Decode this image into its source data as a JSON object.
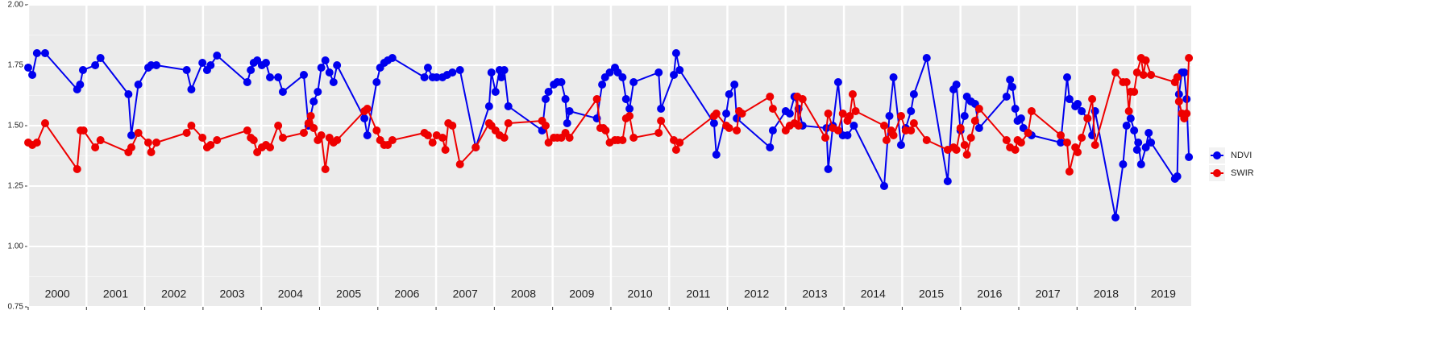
{
  "chart_data": {
    "type": "line",
    "xlim": [
      2000,
      2019.96
    ],
    "ylim": [
      0.75,
      2.0
    ],
    "yticks": [
      {
        "value": 0.75,
        "label": "0.75"
      },
      {
        "value": 1.0,
        "label": "1.00"
      },
      {
        "value": 1.25,
        "label": "1.25"
      },
      {
        "value": 1.5,
        "label": "1.50"
      },
      {
        "value": 1.75,
        "label": "1.75"
      },
      {
        "value": 2.0,
        "label": "2.00"
      }
    ],
    "xticks": [
      {
        "value": 2000,
        "label": "2000"
      },
      {
        "value": 2001,
        "label": "2001"
      },
      {
        "value": 2002,
        "label": "2002"
      },
      {
        "value": 2003,
        "label": "2003"
      },
      {
        "value": 2004,
        "label": "2004"
      },
      {
        "value": 2005,
        "label": "2005"
      },
      {
        "value": 2006,
        "label": "2006"
      },
      {
        "value": 2007,
        "label": "2007"
      },
      {
        "value": 2008,
        "label": "2008"
      },
      {
        "value": 2009,
        "label": "2009"
      },
      {
        "value": 2010,
        "label": "2010"
      },
      {
        "value": 2011,
        "label": "2011"
      },
      {
        "value": 2012,
        "label": "2012"
      },
      {
        "value": 2013,
        "label": "2013"
      },
      {
        "value": 2014,
        "label": "2014"
      },
      {
        "value": 2015,
        "label": "2015"
      },
      {
        "value": 2016,
        "label": "2016"
      },
      {
        "value": 2017,
        "label": "2017"
      },
      {
        "value": 2018,
        "label": "2018"
      },
      {
        "value": 2019,
        "label": "2019"
      }
    ],
    "grid": true,
    "legend": "right",
    "series": [
      {
        "name": "NDVI",
        "color": "#0000ee",
        "x": [
          2000.0,
          2000.07,
          2000.15,
          2000.29,
          2000.84,
          2000.89,
          2000.94,
          2001.15,
          2001.24,
          2001.72,
          2001.77,
          2001.89,
          2002.06,
          2002.11,
          2002.2,
          2002.72,
          2002.8,
          2002.99,
          2003.07,
          2003.13,
          2003.24,
          2003.76,
          2003.82,
          2003.87,
          2003.93,
          2004.01,
          2004.08,
          2004.15,
          2004.29,
          2004.37,
          2004.73,
          2004.81,
          2004.9,
          2004.97,
          2005.03,
          2005.1,
          2005.17,
          2005.24,
          2005.3,
          2005.77,
          2005.82,
          2005.98,
          2006.04,
          2006.11,
          2006.17,
          2006.25,
          2006.8,
          2006.86,
          2006.94,
          2007.01,
          2007.11,
          2007.19,
          2007.28,
          2007.41,
          2007.68,
          2007.91,
          2007.95,
          2008.02,
          2008.09,
          2008.12,
          2008.17,
          2008.24,
          2008.82,
          2008.88,
          2008.93,
          2009.02,
          2009.08,
          2009.15,
          2009.22,
          2009.25,
          2009.29,
          2009.76,
          2009.85,
          2009.9,
          2009.98,
          2010.07,
          2010.12,
          2010.2,
          2010.26,
          2010.32,
          2010.39,
          2010.82,
          2010.86,
          2011.08,
          2011.12,
          2011.18,
          2011.77,
          2011.81,
          2011.98,
          2012.03,
          2012.12,
          2012.16,
          2012.73,
          2012.78,
          2013.0,
          2013.07,
          2013.15,
          2013.22,
          2013.29,
          2013.7,
          2013.73,
          2013.81,
          2013.9,
          2013.98,
          2014.06,
          2014.17,
          2014.69,
          2014.78,
          2014.85,
          2014.98,
          2015.06,
          2015.15,
          2015.2,
          2015.42,
          2015.78,
          2015.88,
          2015.93,
          2016.0,
          2016.07,
          2016.11,
          2016.18,
          2016.25,
          2016.32,
          2016.79,
          2016.85,
          2016.89,
          2016.94,
          2016.98,
          2017.04,
          2017.08,
          2017.16,
          2017.22,
          2017.72,
          2017.83,
          2017.87,
          2017.97,
          2018.01,
          2018.08,
          2018.18,
          2018.26,
          2018.31,
          2018.66,
          2018.79,
          2018.85,
          2018.92,
          2018.98,
          2019.03,
          2019.05,
          2019.1,
          2019.18,
          2019.23,
          2019.27,
          2019.68,
          2019.72,
          2019.75,
          2019.8,
          2019.84,
          2019.88,
          2019.92
        ],
        "values": [
          1.74,
          1.71,
          1.8,
          1.8,
          1.65,
          1.67,
          1.73,
          1.75,
          1.78,
          1.63,
          1.46,
          1.67,
          1.74,
          1.75,
          1.75,
          1.73,
          1.65,
          1.76,
          1.73,
          1.75,
          1.79,
          1.68,
          1.73,
          1.76,
          1.77,
          1.75,
          1.76,
          1.7,
          1.7,
          1.64,
          1.71,
          1.5,
          1.6,
          1.64,
          1.74,
          1.77,
          1.72,
          1.68,
          1.75,
          1.53,
          1.46,
          1.68,
          1.74,
          1.76,
          1.77,
          1.78,
          1.7,
          1.74,
          1.7,
          1.7,
          1.7,
          1.71,
          1.72,
          1.73,
          1.41,
          1.58,
          1.72,
          1.64,
          1.73,
          1.7,
          1.73,
          1.58,
          1.48,
          1.61,
          1.64,
          1.67,
          1.68,
          1.68,
          1.61,
          1.51,
          1.56,
          1.53,
          1.67,
          1.7,
          1.72,
          1.74,
          1.72,
          1.7,
          1.61,
          1.57,
          1.68,
          1.72,
          1.57,
          1.71,
          1.8,
          1.73,
          1.51,
          1.38,
          1.55,
          1.63,
          1.67,
          1.53,
          1.41,
          1.48,
          1.56,
          1.55,
          1.62,
          1.57,
          1.5,
          1.49,
          1.32,
          1.5,
          1.68,
          1.46,
          1.46,
          1.5,
          1.25,
          1.54,
          1.7,
          1.42,
          1.49,
          1.56,
          1.63,
          1.78,
          1.27,
          1.65,
          1.67,
          1.48,
          1.54,
          1.62,
          1.6,
          1.59,
          1.49,
          1.62,
          1.69,
          1.66,
          1.57,
          1.52,
          1.53,
          1.49,
          1.47,
          1.46,
          1.43,
          1.7,
          1.61,
          1.58,
          1.59,
          1.56,
          1.53,
          1.46,
          1.56,
          1.12,
          1.34,
          1.5,
          1.53,
          1.48,
          1.4,
          1.43,
          1.34,
          1.41,
          1.47,
          1.43,
          1.28,
          1.29,
          1.63,
          1.72,
          1.72,
          1.61,
          1.37
        ]
      },
      {
        "name": "SWIR",
        "color": "#ee0000",
        "x": [
          2000.0,
          2000.07,
          2000.15,
          2000.29,
          2000.84,
          2000.9,
          2000.95,
          2001.15,
          2001.24,
          2001.72,
          2001.77,
          2001.89,
          2002.06,
          2002.11,
          2002.2,
          2002.72,
          2002.8,
          2002.99,
          2003.07,
          2003.13,
          2003.24,
          2003.76,
          2003.82,
          2003.87,
          2003.93,
          2004.01,
          2004.08,
          2004.15,
          2004.29,
          2004.37,
          2004.73,
          2004.81,
          2004.85,
          2004.9,
          2004.97,
          2005.03,
          2005.1,
          2005.17,
          2005.24,
          2005.3,
          2005.77,
          2005.82,
          2005.98,
          2006.04,
          2006.11,
          2006.17,
          2006.25,
          2006.8,
          2006.86,
          2006.94,
          2007.01,
          2007.11,
          2007.16,
          2007.21,
          2007.28,
          2007.41,
          2007.68,
          2007.91,
          2007.95,
          2008.02,
          2008.09,
          2008.17,
          2008.24,
          2008.82,
          2008.88,
          2008.93,
          2009.02,
          2009.08,
          2009.15,
          2009.22,
          2009.29,
          2009.76,
          2009.82,
          2009.87,
          2009.91,
          2009.98,
          2010.07,
          2010.12,
          2010.2,
          2010.26,
          2010.32,
          2010.39,
          2010.82,
          2010.86,
          2011.08,
          2011.12,
          2011.18,
          2011.77,
          2011.81,
          2011.98,
          2012.03,
          2012.16,
          2012.2,
          2012.25,
          2012.73,
          2012.78,
          2013.0,
          2013.07,
          2013.15,
          2013.2,
          2013.22,
          2013.29,
          2013.68,
          2013.73,
          2013.81,
          2013.9,
          2013.98,
          2014.06,
          2014.1,
          2014.15,
          2014.2,
          2014.69,
          2014.73,
          2014.81,
          2014.85,
          2014.98,
          2015.06,
          2015.15,
          2015.2,
          2015.42,
          2015.78,
          2015.88,
          2015.93,
          2016.0,
          2016.07,
          2016.11,
          2016.18,
          2016.25,
          2016.32,
          2016.79,
          2016.85,
          2016.94,
          2016.98,
          2017.04,
          2017.16,
          2017.22,
          2017.72,
          2017.83,
          2017.87,
          2017.97,
          2018.01,
          2018.08,
          2018.18,
          2018.26,
          2018.31,
          2018.66,
          2018.79,
          2018.85,
          2018.89,
          2018.92,
          2018.98,
          2019.03,
          2019.1,
          2019.14,
          2019.18,
          2019.27,
          2019.68,
          2019.72,
          2019.75,
          2019.8,
          2019.84,
          2019.88,
          2019.92
        ],
        "values": [
          1.43,
          1.42,
          1.43,
          1.51,
          1.32,
          1.48,
          1.48,
          1.41,
          1.44,
          1.39,
          1.41,
          1.47,
          1.43,
          1.39,
          1.43,
          1.47,
          1.5,
          1.45,
          1.41,
          1.42,
          1.44,
          1.48,
          1.45,
          1.44,
          1.39,
          1.41,
          1.42,
          1.41,
          1.5,
          1.45,
          1.47,
          1.51,
          1.54,
          1.49,
          1.44,
          1.46,
          1.32,
          1.45,
          1.43,
          1.44,
          1.56,
          1.57,
          1.48,
          1.44,
          1.42,
          1.42,
          1.44,
          1.47,
          1.46,
          1.43,
          1.46,
          1.45,
          1.4,
          1.51,
          1.5,
          1.34,
          1.41,
          1.51,
          1.5,
          1.48,
          1.46,
          1.45,
          1.51,
          1.52,
          1.5,
          1.43,
          1.45,
          1.45,
          1.45,
          1.47,
          1.45,
          1.61,
          1.49,
          1.49,
          1.48,
          1.43,
          1.44,
          1.44,
          1.44,
          1.53,
          1.54,
          1.45,
          1.47,
          1.52,
          1.44,
          1.4,
          1.43,
          1.54,
          1.55,
          1.5,
          1.49,
          1.48,
          1.56,
          1.55,
          1.62,
          1.57,
          1.48,
          1.5,
          1.51,
          1.62,
          1.5,
          1.61,
          1.45,
          1.55,
          1.49,
          1.48,
          1.55,
          1.52,
          1.54,
          1.63,
          1.56,
          1.5,
          1.44,
          1.48,
          1.46,
          1.54,
          1.48,
          1.48,
          1.51,
          1.44,
          1.4,
          1.41,
          1.4,
          1.49,
          1.42,
          1.38,
          1.45,
          1.52,
          1.57,
          1.44,
          1.41,
          1.4,
          1.44,
          1.43,
          1.47,
          1.56,
          1.46,
          1.43,
          1.31,
          1.41,
          1.39,
          1.45,
          1.53,
          1.61,
          1.42,
          1.72,
          1.68,
          1.68,
          1.56,
          1.64,
          1.64,
          1.72,
          1.78,
          1.71,
          1.77,
          1.71,
          1.68,
          1.7,
          1.6,
          1.55,
          1.53,
          1.55,
          1.78
        ]
      }
    ]
  }
}
